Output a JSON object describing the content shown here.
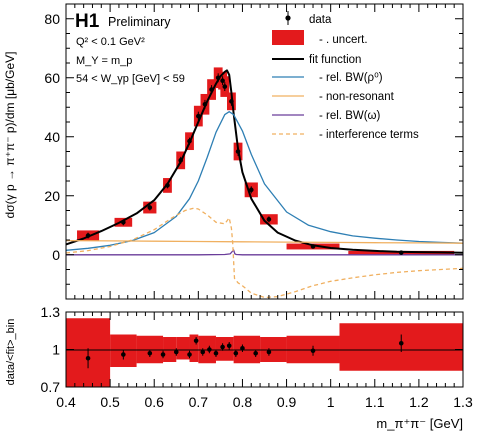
{
  "chart_data": {
    "type": "line",
    "main_panel": {
      "experiment": "H1",
      "status": "Preliminary",
      "cuts": [
        "Q² < 0.1 GeV²",
        "M_Y = m_p",
        "54 < W_γp [GeV] < 59"
      ],
      "ylabel": "dσ(γ p → π⁺π⁻ p)/dm [μb/GeV]",
      "xlim": [
        0.4,
        1.3
      ],
      "ylim": [
        -15,
        85
      ],
      "yticks": [
        0,
        20,
        40,
        60,
        80
      ],
      "legend": {
        "placement": "top-right",
        "entries": [
          "data",
          "- . uncert.",
          "fit function",
          "- rel. BW(ρ⁰)",
          "- non-resonant",
          "- rel. BW(ω)",
          "- interference terms"
        ]
      },
      "data_points": [
        {
          "x": 0.45,
          "y": 6.5,
          "err": 1.0,
          "box_w": 0.05,
          "box_h": 3.5
        },
        {
          "x": 0.53,
          "y": 11.0,
          "err": 1.0,
          "box_w": 0.04,
          "box_h": 3.0
        },
        {
          "x": 0.59,
          "y": 16.0,
          "err": 1.0,
          "box_w": 0.03,
          "box_h": 4.0
        },
        {
          "x": 0.63,
          "y": 23.5,
          "err": 1.0,
          "box_w": 0.02,
          "box_h": 5.0
        },
        {
          "x": 0.66,
          "y": 32.0,
          "err": 1.2,
          "box_w": 0.02,
          "box_h": 6.0
        },
        {
          "x": 0.68,
          "y": 38.5,
          "err": 1.2,
          "box_w": 0.02,
          "box_h": 6.0
        },
        {
          "x": 0.7,
          "y": 47.0,
          "err": 1.5,
          "box_w": 0.02,
          "box_h": 7.0
        },
        {
          "x": 0.715,
          "y": 51.0,
          "err": 1.5,
          "box_w": 0.02,
          "box_h": 7.0
        },
        {
          "x": 0.73,
          "y": 56.0,
          "err": 1.5,
          "box_w": 0.02,
          "box_h": 7.0
        },
        {
          "x": 0.745,
          "y": 60.0,
          "err": 1.5,
          "box_w": 0.02,
          "box_h": 7.0
        },
        {
          "x": 0.755,
          "y": 59.0,
          "err": 1.5,
          "box_w": 0.02,
          "box_h": 6.0
        },
        {
          "x": 0.76,
          "y": 57.0,
          "err": 1.5,
          "box_w": 0.02,
          "box_h": 7.0
        },
        {
          "x": 0.775,
          "y": 52.0,
          "err": 1.5,
          "box_w": 0.02,
          "box_h": 6.0
        },
        {
          "x": 0.79,
          "y": 35.0,
          "err": 1.5,
          "box_w": 0.02,
          "box_h": 6.0
        },
        {
          "x": 0.82,
          "y": 22.0,
          "err": 1.2,
          "box_w": 0.03,
          "box_h": 5.0
        },
        {
          "x": 0.86,
          "y": 12.0,
          "err": 1.0,
          "box_w": 0.04,
          "box_h": 3.5
        },
        {
          "x": 0.96,
          "y": 2.8,
          "err": 0.5,
          "box_w": 0.12,
          "box_h": 2.0
        },
        {
          "x": 1.16,
          "y": 0.7,
          "err": 0.4,
          "box_w": 0.24,
          "box_h": 1.2
        }
      ],
      "curves": [
        {
          "name": "fit function",
          "color": "#000000",
          "width": 2.0,
          "dash": "",
          "x": [
            0.4,
            0.44,
            0.48,
            0.52,
            0.56,
            0.6,
            0.63,
            0.66,
            0.68,
            0.7,
            0.72,
            0.74,
            0.75,
            0.76,
            0.765,
            0.77,
            0.775,
            0.78,
            0.785,
            0.79,
            0.8,
            0.82,
            0.85,
            0.88,
            0.92,
            0.96,
            1.0,
            1.05,
            1.1,
            1.15,
            1.2,
            1.25,
            1.3
          ],
          "y": [
            3.5,
            5.5,
            8.0,
            10.8,
            14.0,
            18.5,
            24.0,
            31.5,
            38.0,
            45.0,
            52.0,
            58.0,
            60.5,
            62.0,
            62.5,
            61.0,
            55.0,
            48.0,
            42.0,
            36.0,
            28.0,
            19.0,
            11.5,
            7.5,
            4.8,
            3.2,
            2.3,
            1.7,
            1.3,
            1.0,
            0.9,
            0.8,
            0.7
          ]
        },
        {
          "name": "- rel. BW(ρ⁰)",
          "color": "#2e7fb4",
          "width": 1.3,
          "dash": "",
          "x": [
            0.4,
            0.45,
            0.5,
            0.55,
            0.6,
            0.65,
            0.68,
            0.7,
            0.72,
            0.74,
            0.76,
            0.77,
            0.78,
            0.8,
            0.82,
            0.85,
            0.9,
            0.95,
            1.0,
            1.05,
            1.1,
            1.15,
            1.2,
            1.25,
            1.3
          ],
          "y": [
            1.5,
            2.2,
            3.2,
            4.8,
            7.5,
            13.0,
            19.0,
            25.0,
            33.0,
            41.5,
            47.5,
            48.5,
            47.5,
            42.0,
            34.0,
            24.0,
            14.5,
            10.0,
            7.8,
            6.4,
            5.6,
            5.0,
            4.5,
            4.2,
            3.9
          ]
        },
        {
          "name": "- non-resonant",
          "color": "#f0b060",
          "width": 1.3,
          "dash": "",
          "x": [
            0.4,
            0.5,
            0.6,
            0.7,
            0.8,
            0.9,
            1.0,
            1.1,
            1.2,
            1.3
          ],
          "y": [
            4.8,
            4.7,
            4.6,
            4.5,
            4.4,
            4.3,
            4.2,
            4.1,
            4.0,
            3.9
          ]
        },
        {
          "name": "- rel. BW(ω)",
          "color": "#6a3d9a",
          "width": 1.3,
          "dash": "",
          "x": [
            0.4,
            0.7,
            0.76,
            0.772,
            0.78,
            0.783,
            0.786,
            0.8,
            1.3
          ],
          "y": [
            0,
            0,
            0.1,
            0.3,
            1.6,
            0.3,
            0.1,
            0,
            0
          ]
        },
        {
          "name": "- interference terms",
          "color": "#f0b060",
          "width": 1.3,
          "dash": "4,3",
          "x": [
            0.4,
            0.45,
            0.5,
            0.55,
            0.6,
            0.64,
            0.67,
            0.69,
            0.7,
            0.72,
            0.74,
            0.76,
            0.77,
            0.775,
            0.778,
            0.78,
            0.782,
            0.79,
            0.8,
            0.82,
            0.85,
            0.88,
            0.92,
            0.96,
            1.0,
            1.05,
            1.1,
            1.15,
            1.2,
            1.25,
            1.3
          ],
          "y": [
            0.6,
            1.4,
            2.8,
            5.0,
            8.5,
            12.5,
            15.0,
            15.8,
            15.5,
            13.5,
            11.0,
            10.5,
            12.5,
            9.0,
            4.0,
            -2.0,
            -8.0,
            -9.5,
            -10.5,
            -13.0,
            -14.5,
            -14.2,
            -12.5,
            -10.5,
            -9.0,
            -7.8,
            -6.8,
            -6.0,
            -5.4,
            -5.0,
            -4.6
          ]
        }
      ]
    },
    "ratio_panel": {
      "ylabel": "data/<fit>_bin",
      "xlabel": "m_π⁺π⁻ [GeV]",
      "xlim": [
        0.4,
        1.3
      ],
      "ylim": [
        0.7,
        1.3
      ],
      "yticks": [
        "0.7",
        "1",
        "1.3"
      ],
      "xticks": [
        "0.4",
        "0.5",
        "0.6",
        "0.7",
        "0.8",
        "0.9",
        "1",
        "1.1",
        "1.2",
        "1.3"
      ],
      "band": [
        {
          "x0": 0.4,
          "x1": 0.5,
          "lo": 0.7,
          "hi": 1.25
        },
        {
          "x0": 0.5,
          "x1": 0.56,
          "lo": 0.86,
          "hi": 1.12
        },
        {
          "x0": 0.56,
          "x1": 0.62,
          "lo": 0.89,
          "hi": 1.11
        },
        {
          "x0": 0.62,
          "x1": 0.65,
          "lo": 0.9,
          "hi": 1.1
        },
        {
          "x0": 0.65,
          "x1": 0.68,
          "lo": 0.92,
          "hi": 1.1
        },
        {
          "x0": 0.68,
          "x1": 0.7,
          "lo": 0.9,
          "hi": 1.12
        },
        {
          "x0": 0.7,
          "x1": 0.74,
          "lo": 0.89,
          "hi": 1.11
        },
        {
          "x0": 0.74,
          "x1": 0.78,
          "lo": 0.91,
          "hi": 1.1
        },
        {
          "x0": 0.78,
          "x1": 0.84,
          "lo": 0.89,
          "hi": 1.11
        },
        {
          "x0": 0.84,
          "x1": 0.9,
          "lo": 0.9,
          "hi": 1.1
        },
        {
          "x0": 0.9,
          "x1": 1.02,
          "lo": 0.89,
          "hi": 1.11
        },
        {
          "x0": 1.02,
          "x1": 1.3,
          "lo": 0.83,
          "hi": 1.21
        }
      ],
      "points": [
        {
          "x": 0.45,
          "y": 0.93,
          "err": 0.08
        },
        {
          "x": 0.53,
          "y": 0.96,
          "err": 0.04
        },
        {
          "x": 0.59,
          "y": 0.97,
          "err": 0.03
        },
        {
          "x": 0.62,
          "y": 0.96,
          "err": 0.03
        },
        {
          "x": 0.65,
          "y": 0.98,
          "err": 0.03
        },
        {
          "x": 0.68,
          "y": 0.96,
          "err": 0.03
        },
        {
          "x": 0.695,
          "y": 1.07,
          "err": 0.03
        },
        {
          "x": 0.71,
          "y": 0.98,
          "err": 0.03
        },
        {
          "x": 0.725,
          "y": 1.0,
          "err": 0.03
        },
        {
          "x": 0.74,
          "y": 0.97,
          "err": 0.03
        },
        {
          "x": 0.755,
          "y": 1.02,
          "err": 0.03
        },
        {
          "x": 0.77,
          "y": 1.03,
          "err": 0.03
        },
        {
          "x": 0.785,
          "y": 0.97,
          "err": 0.03
        },
        {
          "x": 0.8,
          "y": 1.01,
          "err": 0.03
        },
        {
          "x": 0.83,
          "y": 0.97,
          "err": 0.03
        },
        {
          "x": 0.86,
          "y": 0.98,
          "err": 0.03
        },
        {
          "x": 0.96,
          "y": 0.99,
          "err": 0.04
        },
        {
          "x": 1.16,
          "y": 1.05,
          "err": 0.07
        }
      ]
    }
  }
}
